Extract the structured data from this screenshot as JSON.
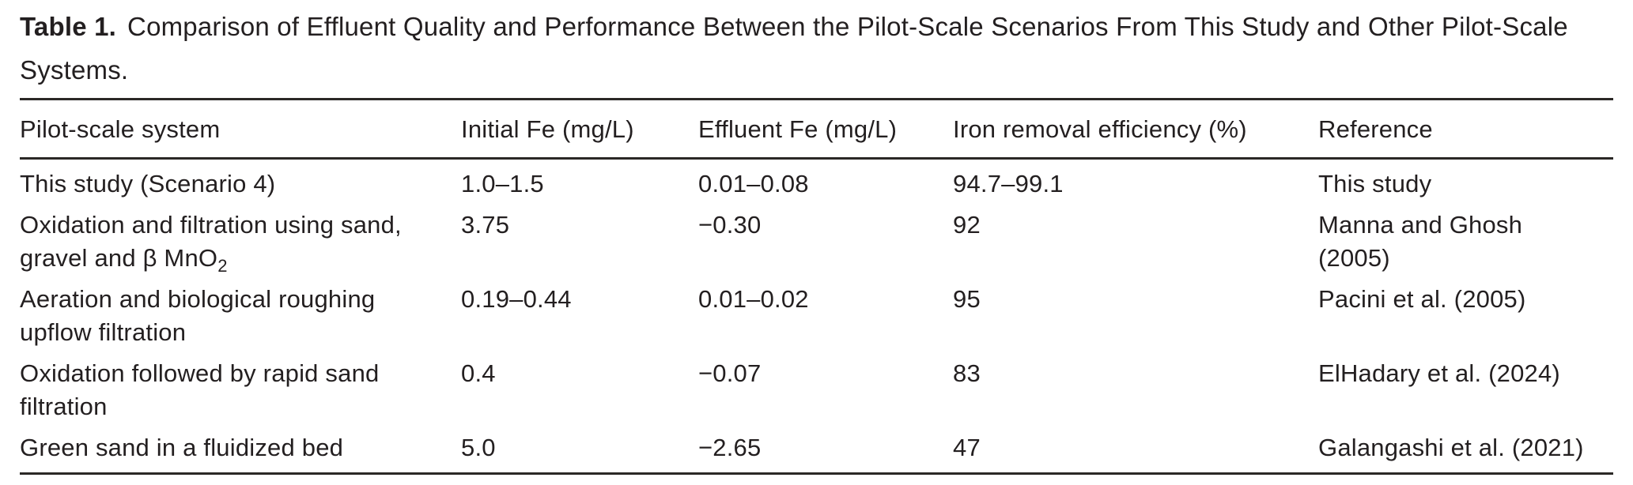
{
  "page": {
    "background_color": "#ffffff",
    "text_color": "#231f20",
    "rule_color": "#2b2826"
  },
  "table": {
    "label": "Table 1.",
    "caption": "Comparison of Effluent Quality and Performance Between the Pilot-Scale Scenarios From This Study and Other Pilot-Scale Systems.",
    "columns": [
      "Pilot-scale system",
      "Initial Fe (mg/L)",
      "Effluent Fe (mg/L)",
      "Iron removal efficiency (%)",
      "Reference"
    ],
    "rows": [
      [
        "This study (Scenario 4)",
        "1.0–1.5",
        "0.01–0.08",
        "94.7–99.1",
        "This study"
      ],
      [
        "Oxidation and filtration using sand, gravel and β MnO₂",
        "3.75",
        "−0.30",
        "92",
        "Manna and Ghosh (2005)"
      ],
      [
        "Aeration and biological roughing upflow filtration",
        "0.19–0.44",
        "0.01–0.02",
        "95",
        "Pacini et al. (2005)"
      ],
      [
        "Oxidation followed by rapid sand filtration",
        "0.4",
        "−0.07",
        "83",
        "ElHadary et al. (2024)"
      ],
      [
        "Green sand in a fluidized bed",
        "5.0",
        "−2.65",
        "47",
        "Galangashi et al. (2021)"
      ]
    ]
  }
}
